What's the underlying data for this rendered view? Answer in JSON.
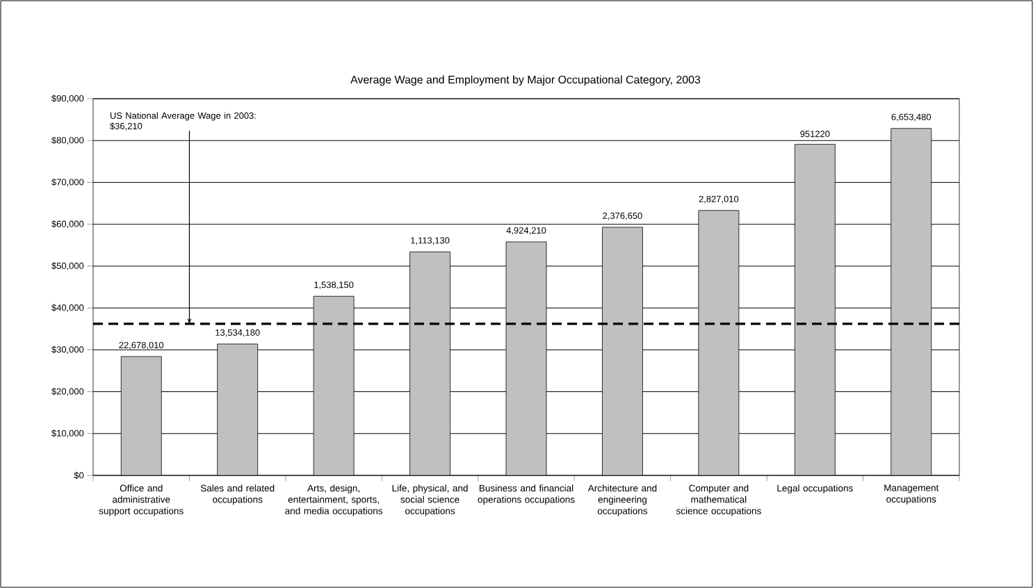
{
  "chart_data": {
    "type": "bar",
    "title": "Average Wage and Employment by Major Occupational Category, 2003",
    "categories": [
      "Office and administrative support occupations",
      "Sales and related occupations",
      "Arts, design, entertainment, sports, and media occupations",
      "Life, physical, and social science occupations",
      "Business and financial operations occupations",
      "Architecture and engineering occupations",
      "Computer and mathematical science occupations",
      "Legal occupations",
      "Management occupations"
    ],
    "values": [
      28400,
      31400,
      42800,
      53400,
      55800,
      59300,
      63300,
      79100,
      82900
    ],
    "annotations": [
      {
        "text": "22,678,010",
        "x": "Office and administrative support occupations",
        "y": 28400
      },
      {
        "text": "13,534,180",
        "x": "Sales and related occupations",
        "y": 31400
      },
      {
        "text": "1,538,150",
        "x": "Arts, design, entertainment, sports, and media occupations",
        "y": 42800
      },
      {
        "text": "1,113,130",
        "x": "Life, physical, and social science occupations",
        "y": 53400
      },
      {
        "text": "4,924,210",
        "x": "Business and financial operations occupations",
        "y": 55800
      },
      {
        "text": "2,376,650",
        "x": "Architecture and engineering occupations",
        "y": 59300
      },
      {
        "text": "2,827,010",
        "x": "Computer and mathematical science occupations",
        "y": 63300
      },
      {
        "text": "951220",
        "x": "Legal occupations",
        "y": 79100
      },
      {
        "text": "6,653,480",
        "x": "Management occupations",
        "y": 82900
      }
    ],
    "color": "#c0c0c0",
    "ylim": [
      0,
      90000
    ],
    "yticks": [
      {
        "value": 0,
        "label": "$0"
      },
      {
        "value": 10000,
        "label": "$10,000"
      },
      {
        "value": 20000,
        "label": "$20,000"
      },
      {
        "value": 30000,
        "label": "$30,000"
      },
      {
        "value": 40000,
        "label": "$40,000"
      },
      {
        "value": 50000,
        "label": "$50,000"
      },
      {
        "value": 60000,
        "label": "$60,000"
      },
      {
        "value": 70000,
        "label": "$70,000"
      },
      {
        "value": 80000,
        "label": "$80,000"
      },
      {
        "value": 90000,
        "label": "$90,000"
      }
    ],
    "grid": "y",
    "ref_lines": [
      {
        "axis": "y",
        "value": 36210,
        "label": "US National Average Wage in 2003: $36,210",
        "color": "#000000",
        "line_style": "dashed"
      }
    ]
  }
}
